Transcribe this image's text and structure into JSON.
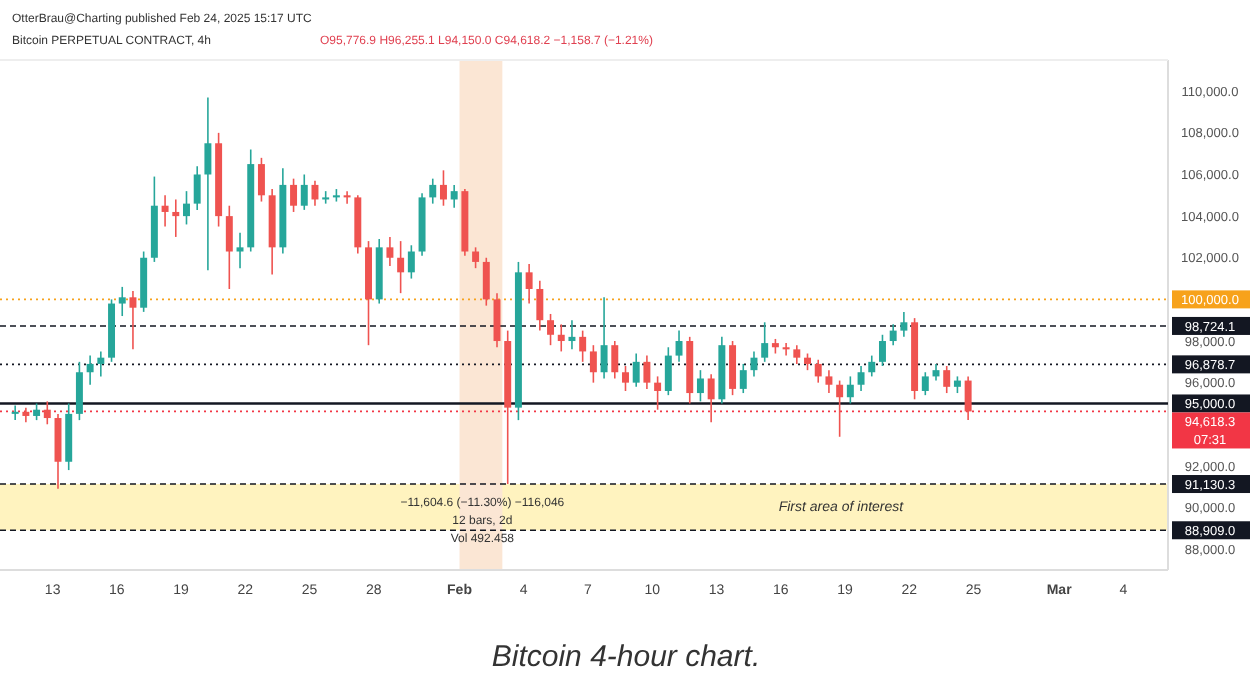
{
  "chart_data": {
    "type": "candlestick",
    "title": "Bitcoin PERPETUAL CONTRACT, 4h",
    "subtitle": "OtterBrau@Charting published Feb 24, 2025 15:17 UTC",
    "x": [
      "2025-01-11T06:00",
      "2025-01-11T18:00",
      "2025-01-12T06:00",
      "2025-01-12T18:00",
      "2025-01-13T06:00",
      "2025-01-13T18:00",
      "2025-01-14T06:00",
      "2025-01-14T18:00",
      "2025-01-15T06:00",
      "2025-01-15T18:00",
      "2025-01-16T06:00",
      "2025-01-16T18:00",
      "2025-01-17T06:00",
      "2025-01-17T18:00",
      "2025-01-18T06:00",
      "2025-01-18T18:00",
      "2025-01-19T06:00",
      "2025-01-19T18:00",
      "2025-01-20T06:00",
      "2025-01-20T18:00",
      "2025-01-21T06:00",
      "2025-01-21T18:00",
      "2025-01-22T06:00",
      "2025-01-22T18:00",
      "2025-01-23T06:00",
      "2025-01-23T18:00",
      "2025-01-24T06:00",
      "2025-01-24T18:00",
      "2025-01-25T06:00",
      "2025-01-25T18:00",
      "2025-01-26T06:00",
      "2025-01-26T18:00",
      "2025-01-27T06:00",
      "2025-01-27T18:00",
      "2025-01-28T06:00",
      "2025-01-28T18:00",
      "2025-01-29T06:00",
      "2025-01-29T18:00",
      "2025-01-30T06:00",
      "2025-01-30T18:00",
      "2025-01-31T06:00",
      "2025-01-31T18:00",
      "2025-02-01T06:00",
      "2025-02-01T18:00",
      "2025-02-02T06:00",
      "2025-02-02T18:00",
      "2025-02-03T06:00",
      "2025-02-03T18:00",
      "2025-02-04T06:00",
      "2025-02-04T18:00",
      "2025-02-05T06:00",
      "2025-02-05T18:00",
      "2025-02-06T06:00",
      "2025-02-06T18:00",
      "2025-02-07T06:00",
      "2025-02-07T18:00",
      "2025-02-08T06:00",
      "2025-02-08T18:00",
      "2025-02-09T06:00",
      "2025-02-09T18:00",
      "2025-02-10T06:00",
      "2025-02-10T18:00",
      "2025-02-11T06:00",
      "2025-02-11T18:00",
      "2025-02-12T06:00",
      "2025-02-12T18:00",
      "2025-02-13T06:00",
      "2025-02-13T18:00",
      "2025-02-14T06:00",
      "2025-02-14T18:00",
      "2025-02-15T06:00",
      "2025-02-15T18:00",
      "2025-02-16T06:00",
      "2025-02-16T18:00",
      "2025-02-17T06:00",
      "2025-02-17T18:00",
      "2025-02-18T06:00",
      "2025-02-18T18:00",
      "2025-02-19T06:00",
      "2025-02-19T18:00",
      "2025-02-20T06:00",
      "2025-02-20T18:00",
      "2025-02-21T06:00",
      "2025-02-21T18:00",
      "2025-02-22T06:00",
      "2025-02-22T18:00",
      "2025-02-23T06:00",
      "2025-02-23T18:00",
      "2025-02-24T06:00",
      "2025-02-24T18:00"
    ],
    "ohlc": [
      [
        94500,
        94900,
        94200,
        94600
      ],
      [
        94600,
        94800,
        94100,
        94400
      ],
      [
        94400,
        95000,
        94200,
        94700
      ],
      [
        94700,
        95100,
        94000,
        94300
      ],
      [
        94300,
        94500,
        90900,
        92200
      ],
      [
        92200,
        95000,
        91800,
        94500
      ],
      [
        94500,
        97000,
        94200,
        96500
      ],
      [
        96500,
        97300,
        95900,
        96900
      ],
      [
        96900,
        97500,
        96300,
        97200
      ],
      [
        97200,
        100000,
        97000,
        99800
      ],
      [
        99800,
        100600,
        99200,
        100100
      ],
      [
        100100,
        100400,
        97600,
        99600
      ],
      [
        99600,
        102300,
        99400,
        102000
      ],
      [
        102000,
        105900,
        101800,
        104500
      ],
      [
        104500,
        105000,
        103500,
        104200
      ],
      [
        104200,
        104800,
        103000,
        104000
      ],
      [
        104000,
        105200,
        103600,
        104600
      ],
      [
        104600,
        106400,
        104300,
        106000
      ],
      [
        106000,
        109700,
        101400,
        107500
      ],
      [
        107500,
        108000,
        103500,
        104000
      ],
      [
        104000,
        104500,
        100500,
        102300
      ],
      [
        102300,
        103200,
        101500,
        102500
      ],
      [
        102500,
        107200,
        102300,
        106500
      ],
      [
        106500,
        106800,
        104700,
        105000
      ],
      [
        105000,
        105300,
        101200,
        102500
      ],
      [
        102500,
        106300,
        102200,
        105500
      ],
      [
        105500,
        105800,
        104200,
        104500
      ],
      [
        104500,
        106000,
        104300,
        105500
      ],
      [
        105500,
        105700,
        104500,
        104800
      ],
      [
        104800,
        105200,
        104600,
        104900
      ],
      [
        104900,
        105300,
        104700,
        105000
      ],
      [
        105000,
        105200,
        104600,
        104900
      ],
      [
        104900,
        105000,
        102200,
        102500
      ],
      [
        102500,
        102800,
        97800,
        100000
      ],
      [
        100000,
        102900,
        99800,
        102500
      ],
      [
        102500,
        103000,
        101600,
        102000
      ],
      [
        102000,
        102800,
        100300,
        101300
      ],
      [
        101300,
        102600,
        101000,
        102300
      ],
      [
        102300,
        105100,
        102100,
        104900
      ],
      [
        104900,
        105800,
        104600,
        105500
      ],
      [
        105500,
        106200,
        104500,
        104800
      ],
      [
        104800,
        105500,
        104400,
        105200
      ],
      [
        105200,
        105300,
        102100,
        102300
      ],
      [
        102300,
        102500,
        101500,
        101800
      ],
      [
        101800,
        102000,
        99700,
        100000
      ],
      [
        100000,
        100300,
        97700,
        98000
      ],
      [
        98000,
        98500,
        91130.3,
        94800
      ],
      [
        94800,
        101800,
        94200,
        101300
      ],
      [
        101300,
        101700,
        99800,
        100500
      ],
      [
        100500,
        100900,
        98500,
        99000
      ],
      [
        99000,
        99300,
        97800,
        98300
      ],
      [
        98300,
        98800,
        97500,
        98000
      ],
      [
        98000,
        99000,
        97600,
        98200
      ],
      [
        98200,
        98500,
        97000,
        97500
      ],
      [
        97500,
        97800,
        96000,
        96500
      ],
      [
        96500,
        100100,
        96200,
        97800
      ],
      [
        97800,
        98000,
        96200,
        96500
      ],
      [
        96500,
        96800,
        95600,
        96000
      ],
      [
        96000,
        97400,
        95800,
        97000
      ],
      [
        97000,
        97300,
        95700,
        96000
      ],
      [
        96000,
        96300,
        94700,
        95600
      ],
      [
        95600,
        97700,
        95400,
        97300
      ],
      [
        97300,
        98500,
        97000,
        98000
      ],
      [
        98000,
        98200,
        95000,
        95500
      ],
      [
        95500,
        96600,
        95100,
        96200
      ],
      [
        96200,
        96400,
        94100,
        95200
      ],
      [
        95200,
        98200,
        95000,
        97800
      ],
      [
        97800,
        98000,
        95400,
        95700
      ],
      [
        95700,
        96900,
        95500,
        96600
      ],
      [
        96600,
        97500,
        96300,
        97200
      ],
      [
        97200,
        98900,
        97000,
        97900
      ],
      [
        97900,
        98100,
        97400,
        97700
      ],
      [
        97700,
        97900,
        97300,
        97600
      ],
      [
        97600,
        97800,
        96900,
        97200
      ],
      [
        97200,
        97400,
        96600,
        96900
      ],
      [
        96900,
        97100,
        96000,
        96300
      ],
      [
        96300,
        96600,
        95500,
        95900
      ],
      [
        95900,
        96100,
        93400,
        95300
      ],
      [
        95300,
        96300,
        95000,
        95900
      ],
      [
        95900,
        96800,
        95600,
        96500
      ],
      [
        96500,
        97300,
        96300,
        97000
      ],
      [
        97000,
        98300,
        96800,
        98000
      ],
      [
        98000,
        98800,
        97800,
        98500
      ],
      [
        98500,
        99400,
        98200,
        98900
      ],
      [
        98900,
        99100,
        95200,
        95600
      ],
      [
        95600,
        96500,
        95400,
        96300
      ],
      [
        96300,
        96900,
        96100,
        96600
      ],
      [
        96600,
        96800,
        95500,
        95800
      ],
      [
        95800,
        96300,
        95500,
        96100
      ],
      [
        96100,
        96300,
        94200,
        94618.3
      ]
    ],
    "xlim": [
      "2025-01-10T13:00",
      "2025-03-06T02:00"
    ],
    "xticks": [
      {
        "value": "2025-01-13",
        "label": "13"
      },
      {
        "value": "2025-01-16",
        "label": "16"
      },
      {
        "value": "2025-01-19",
        "label": "19"
      },
      {
        "value": "2025-01-22",
        "label": "22"
      },
      {
        "value": "2025-01-25",
        "label": "25"
      },
      {
        "value": "2025-01-28",
        "label": "28"
      },
      {
        "value": "2025-02-01",
        "label": "Feb"
      },
      {
        "value": "2025-02-04",
        "label": "4"
      },
      {
        "value": "2025-02-07",
        "label": "7"
      },
      {
        "value": "2025-02-10",
        "label": "10"
      },
      {
        "value": "2025-02-13",
        "label": "13"
      },
      {
        "value": "2025-02-16",
        "label": "16"
      },
      {
        "value": "2025-02-19",
        "label": "19"
      },
      {
        "value": "2025-02-22",
        "label": "22"
      },
      {
        "value": "2025-02-25",
        "label": "25"
      },
      {
        "value": "2025-03-01",
        "label": "Mar"
      },
      {
        "value": "2025-03-04",
        "label": "4"
      }
    ],
    "ylim": [
      87000,
      111500
    ],
    "yticks": [
      {
        "value": 88000,
        "label": "88,000.0"
      },
      {
        "value": 90000,
        "label": "90,000.0"
      },
      {
        "value": 92000,
        "label": "92,000.0"
      },
      {
        "value": 96000,
        "label": "96,000.0"
      },
      {
        "value": 98000,
        "label": "98,000.0"
      },
      {
        "value": 102000,
        "label": "102,000.0"
      },
      {
        "value": 104000,
        "label": "104,000.0"
      },
      {
        "value": 106000,
        "label": "106,000.0"
      },
      {
        "value": 108000,
        "label": "108,000.0"
      },
      {
        "value": 110000,
        "label": "110,000.0"
      }
    ],
    "ref_lines": [
      {
        "axis": "y",
        "value": 100000,
        "label": "100,000.0",
        "color": "#f7a21b",
        "line_style": "dotted"
      },
      {
        "axis": "y",
        "value": 98724.1,
        "label": "98,724.1",
        "color": "#131722",
        "line_style": "dashed"
      },
      {
        "axis": "y",
        "value": 96878.7,
        "label": "96,878.7",
        "color": "#131722",
        "line_style": "dotted"
      },
      {
        "axis": "y",
        "value": 95000,
        "label": "95,000.0",
        "color": "#131722",
        "line_style": "solid"
      },
      {
        "axis": "y",
        "value": 94618.3,
        "label": "94,618.3\n07:31",
        "color": "#f23645",
        "line_style": "dotted"
      },
      {
        "axis": "y",
        "value": 91130.3,
        "label": "91,130.3",
        "color": "#131722",
        "line_style": "dashed"
      },
      {
        "axis": "y",
        "value": 88909,
        "label": "88,909.0",
        "color": "#131722",
        "line_style": "dashed"
      }
    ],
    "bands": [
      {
        "axis": "y",
        "from": 88909,
        "to": 91130.3,
        "label": "First area of interest",
        "color": "#fff3bf"
      },
      {
        "axis": "x",
        "from": "2025-02-01T00:00",
        "to": "2025-02-03T00:00",
        "color": "#fbe6d4"
      }
    ],
    "annotations": [
      "O95,776.9 H96,255.1 L94,150.0 C94,618.2 −1,158.7 (−1.21%)",
      "−11,604.6 (−11.30%) −116,046",
      "12 bars, 2d",
      "Vol 492.458",
      "Bitcoin 4-hour chart."
    ]
  }
}
